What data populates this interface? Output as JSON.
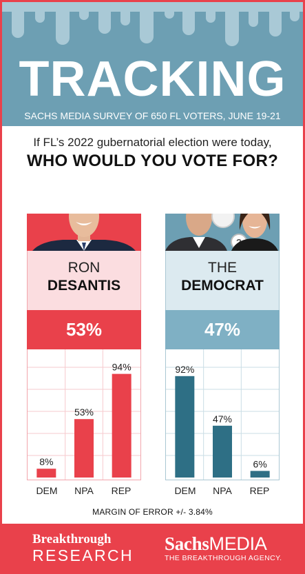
{
  "header": {
    "title": "TRACKING",
    "subtitle": "SACHS MEDIA SURVEY OF 650 FL VOTERS, JUNE 19-21"
  },
  "question": {
    "line1": "If FL’s 2022 gubernatorial election were today,",
    "line2": "WHO WOULD YOU VOTE FOR?"
  },
  "chart_data": [
    {
      "type": "bar",
      "title": "RON DESANTIS",
      "total": "53%",
      "categories": [
        "DEM",
        "NPA",
        "REP"
      ],
      "values": [
        8,
        53,
        94
      ],
      "value_labels": [
        "8%",
        "53%",
        "94%"
      ],
      "ylim": [
        0,
        100
      ],
      "grid": true,
      "color": "#e9414b"
    },
    {
      "type": "bar",
      "title": "THE DEMOCRAT",
      "total": "47%",
      "categories": [
        "DEM",
        "NPA",
        "REP"
      ],
      "values": [
        92,
        47,
        6
      ],
      "value_labels": [
        "92%",
        "47%",
        "6%"
      ],
      "ylim": [
        0,
        100
      ],
      "grid": true,
      "color": "#2e6f85"
    }
  ],
  "candidates": {
    "left": {
      "name_line1": "RON",
      "name_line2": "DESANTIS"
    },
    "right": {
      "name_line1": "THE",
      "name_line2": "DEMOCRAT"
    }
  },
  "margin_of_error": "MARGIN OF ERROR +/- 3.84%",
  "footer": {
    "logo1_line1": "Breakthrough",
    "logo1_line2": "RESEARCH",
    "logo2_bold": "Sachs",
    "logo2_rest": "MEDIA",
    "logo2_tagline": "THE BREAKTHROUGH AGENCY."
  },
  "colors": {
    "red": "#e9414b",
    "blue_header": "#6d9fb3",
    "teal_bar": "#2e6f85"
  }
}
